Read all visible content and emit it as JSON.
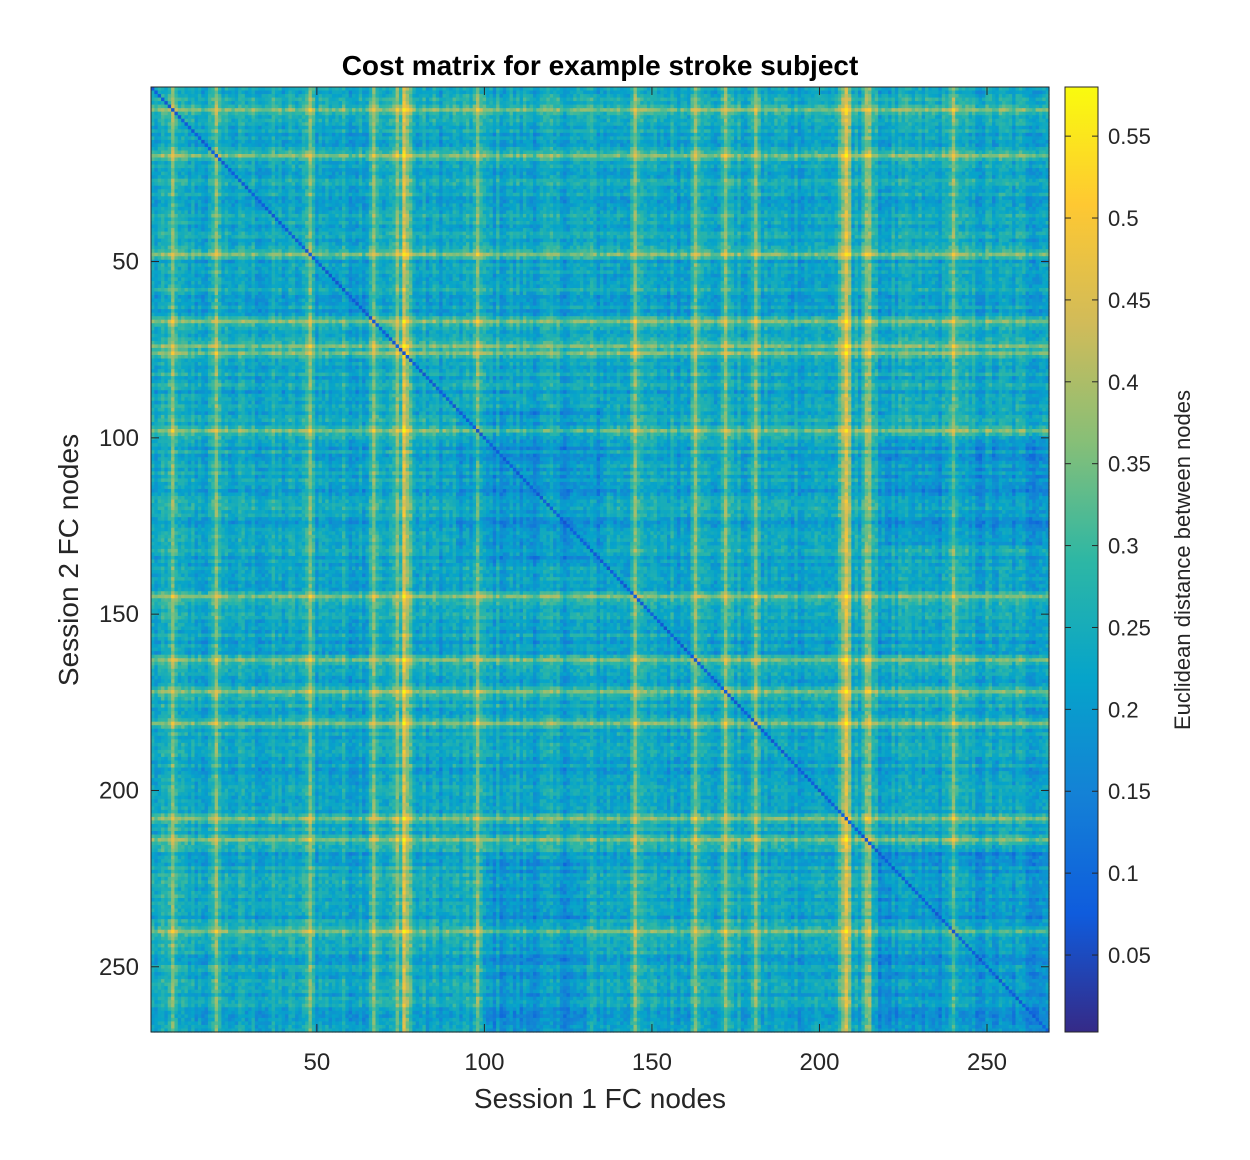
{
  "chart_data": {
    "type": "heatmap",
    "title": "Cost matrix for example stroke subject",
    "xlabel": "Session 1 FC nodes",
    "ylabel": "Session 2 FC nodes",
    "colorbar_label": "Euclidean distance between nodes",
    "n_rows": 268,
    "n_cols": 268,
    "xlim": [
      0.5,
      268.5
    ],
    "ylim": [
      0.5,
      268.5
    ],
    "y_direction": "reverse",
    "x_ticks": [
      50,
      100,
      150,
      200,
      250
    ],
    "x_tick_labels": [
      "50",
      "100",
      "150",
      "200",
      "250"
    ],
    "y_ticks": [
      50,
      100,
      150,
      200,
      250
    ],
    "y_tick_labels": [
      "50",
      "100",
      "150",
      "200",
      "250"
    ],
    "color_limits": [
      0.003,
      0.58
    ],
    "colorbar_ticks": [
      0.05,
      0.1,
      0.15,
      0.2,
      0.25,
      0.3,
      0.35,
      0.4,
      0.45,
      0.5,
      0.55
    ],
    "colorbar_tick_labels": [
      "0.05",
      "0.1",
      "0.15",
      "0.2",
      "0.25",
      "0.3",
      "0.35",
      "0.4",
      "0.45",
      "0.5",
      "0.55"
    ],
    "colormap": "parula",
    "colormap_stops": [
      "#352A87",
      "#0F5CDD",
      "#1481D6",
      "#06A4CA",
      "#2EB7A4",
      "#87BF77",
      "#D1BB59",
      "#FEC832",
      "#F9FB0E"
    ],
    "description_values": {
      "typical_range": [
        0.08,
        0.25
      ],
      "bright_rows_cols": [
        7,
        20,
        48,
        67,
        74,
        76,
        98,
        145,
        163,
        172,
        181,
        208,
        214,
        240
      ],
      "bright_cols_extra": [
        76,
        77,
        78,
        206,
        207,
        208,
        209,
        215
      ],
      "low_value_blocks": [
        [
          92,
          135,
          92,
          135
        ],
        [
          216,
          268,
          216,
          268
        ],
        [
          100,
          130,
          220,
          268
        ]
      ],
      "max_value_approx": 0.57
    }
  }
}
